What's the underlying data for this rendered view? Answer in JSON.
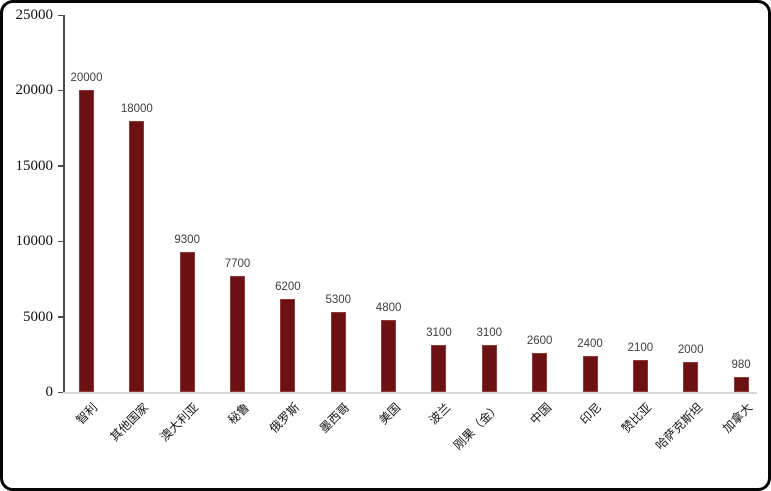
{
  "chart_data": {
    "type": "bar",
    "title": "",
    "xlabel": "",
    "ylabel": "",
    "categories": [
      "智利",
      "其他国家",
      "澳大利亚",
      "秘鲁",
      "俄罗斯",
      "墨西哥",
      "美国",
      "波兰",
      "刚果（金）",
      "中国",
      "印尼",
      "赞比亚",
      "哈萨克斯坦",
      "加拿大"
    ],
    "values": [
      20000,
      18000,
      9300,
      7700,
      6200,
      5300,
      4800,
      3100,
      3100,
      2600,
      2400,
      2100,
      2000,
      980
    ],
    "data_labels": [
      "20000",
      "18000",
      "9300",
      "7700",
      "6200",
      "5300",
      "4800",
      "3100",
      "3100",
      "2600",
      "2400",
      "2100",
      "2000",
      "980"
    ],
    "y_ticks": [
      0,
      5000,
      10000,
      15000,
      20000,
      25000
    ],
    "y_tick_labels": [
      "0",
      "5000",
      "10000",
      "15000",
      "20000",
      "25000"
    ],
    "ylim": [
      0,
      25000
    ],
    "grid": false,
    "legend": null,
    "category_label_rotation_deg": 45,
    "colors": {
      "bar_fill": "#6b1013",
      "bar_edge": "#8e3a38",
      "y_axis_line": "#4d4d4d",
      "x_axis_line": "#d9d9d9",
      "value_label": "#404040",
      "tick_label": "#111111",
      "background": "#ffffff",
      "frame_border": "#050505"
    }
  }
}
